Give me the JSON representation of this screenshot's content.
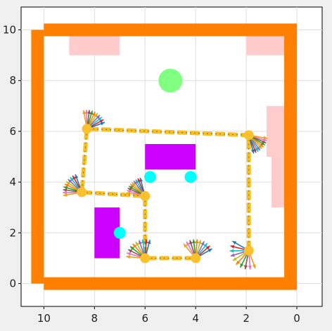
{
  "chart_data": {
    "type": "scatter",
    "title": "",
    "xlabel": "",
    "ylabel": "",
    "x_inverted": true,
    "xlim": [
      10.9,
      -1.0
    ],
    "ylim": [
      -0.9,
      10.9
    ],
    "x_ticks": [
      10,
      8,
      6,
      4,
      2,
      0
    ],
    "y_ticks": [
      0,
      2,
      4,
      6,
      8,
      10
    ],
    "grid": true,
    "colors": {
      "wall": "#ff8000",
      "zone": "#ffcccc",
      "block": "#cc00ff",
      "marker": "#00ffff",
      "goal": "#80ff80",
      "path": "#f5c026",
      "path_center": "#444444",
      "waypoint": "#fbc02d"
    },
    "walls": [
      {
        "x0": 10.0,
        "x1": 0.0,
        "y0": 10.25,
        "y1": 9.75
      },
      {
        "x0": 10.0,
        "x1": 0.0,
        "y0": -0.25,
        "y1": 0.25
      },
      {
        "x0": 10.5,
        "x1": 10.0,
        "y0": 10.0,
        "y1": 0.0
      },
      {
        "x0": 0.5,
        "x1": 0.0,
        "y0": 10.0,
        "y1": 0.0
      }
    ],
    "zones": [
      {
        "x0": 9.0,
        "x1": 7.0,
        "y0": 10.0,
        "y1": 9.0
      },
      {
        "x0": 2.0,
        "x1": 0.0,
        "y0": 10.0,
        "y1": 9.0
      },
      {
        "x0": 1.2,
        "x1": 0.0,
        "y0": 7.0,
        "y1": 5.0
      },
      {
        "x0": 1.0,
        "x1": 0.0,
        "y0": 5.0,
        "y1": 3.0
      }
    ],
    "blocks": [
      {
        "x0": 6.0,
        "x1": 4.0,
        "y0": 5.5,
        "y1": 4.5
      },
      {
        "x0": 8.0,
        "x1": 7.0,
        "y0": 3.0,
        "y1": 1.0
      }
    ],
    "markers": [
      {
        "x": 5.8,
        "y": 4.2
      },
      {
        "x": 4.2,
        "y": 4.2
      },
      {
        "x": 7.0,
        "y": 2.0
      }
    ],
    "goal": {
      "x": 5.0,
      "y": 8.0
    },
    "path": [
      {
        "x": 1.9,
        "y": 1.3
      },
      {
        "x": 1.9,
        "y": 5.85
      },
      {
        "x": 8.3,
        "y": 6.1
      },
      {
        "x": 8.5,
        "y": 3.6
      },
      {
        "x": 6.0,
        "y": 3.45
      },
      {
        "x": 6.0,
        "y": 1.0
      },
      {
        "x": 4.0,
        "y": 1.0
      }
    ],
    "arrow_fans": [
      {
        "x": 1.9,
        "y": 1.3,
        "start_deg": 150,
        "end_deg": 290
      },
      {
        "x": 8.5,
        "y": 3.6,
        "start_deg": 110,
        "end_deg": 190
      },
      {
        "x": 8.3,
        "y": 6.1,
        "start_deg": 20,
        "end_deg": 100
      },
      {
        "x": 6.0,
        "y": 3.45,
        "start_deg": 105,
        "end_deg": 170
      },
      {
        "x": 6.0,
        "y": 1.0,
        "start_deg": 75,
        "end_deg": 175
      },
      {
        "x": 4.0,
        "y": 1.0,
        "start_deg": 30,
        "end_deg": 130
      },
      {
        "x": 1.9,
        "y": 5.85,
        "start_deg": 285,
        "end_deg": 350
      }
    ],
    "arrow_colors": [
      "#1f77b4",
      "#d62728",
      "#17becf",
      "#9467bd",
      "#bcbd22",
      "#ff7f0e",
      "#2ca02c",
      "#8c564b",
      "#e377c2",
      "#f0a020"
    ]
  }
}
